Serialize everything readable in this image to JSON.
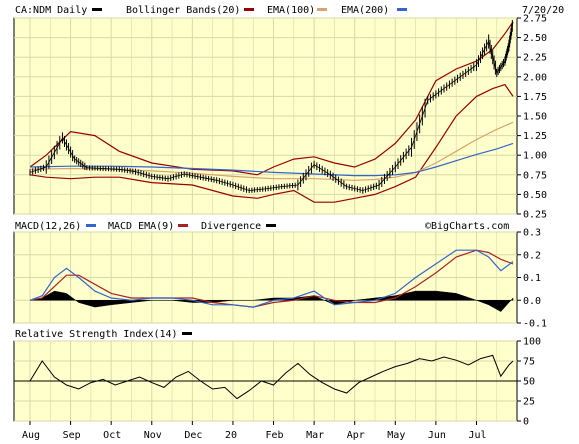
{
  "date_label": "7/20/20",
  "watermark": "©BigCharts.com",
  "colors": {
    "panel_bg": "#ffffcc",
    "grid": "#d8d8a8",
    "price": "#000000",
    "bollinger": "#990000",
    "ema100": "#d9a36b",
    "ema200": "#3366cc",
    "macd": "#3366cc",
    "macd_ema": "#aa2222",
    "divergence": "#000000",
    "rsi": "#000000"
  },
  "chart_data": [
    {
      "type": "line",
      "title": "",
      "legend": [
        {
          "label": "CA:NDM Daily",
          "color": "#000000"
        },
        {
          "label": "Bollinger Bands(20)",
          "color": "#990000"
        },
        {
          "label": "EMA(100)",
          "color": "#d9a36b"
        },
        {
          "label": "EMA(200)",
          "color": "#3366cc"
        }
      ],
      "x": [
        "Aug",
        "Sep",
        "Oct",
        "Nov",
        "Dec",
        "20",
        "Feb",
        "Mar",
        "Apr",
        "May",
        "Jun",
        "Jul"
      ],
      "yticks": [
        "2.75",
        "2.50",
        "2.25",
        "2.00",
        "1.75",
        "1.50",
        "1.25",
        "1.00",
        "0.75",
        "0.50",
        "0.25"
      ],
      "ylim": [
        0.25,
        2.75
      ],
      "series": [
        {
          "name": "CA:NDM Daily",
          "x": [
            0,
            0.4,
            0.8,
            1.1,
            1.4,
            1.8,
            2.2,
            2.6,
            3,
            3.4,
            3.8,
            4.2,
            4.6,
            5,
            5.4,
            5.8,
            6.2,
            6.6,
            7,
            7.4,
            7.8,
            8.2,
            8.6,
            9,
            9.4,
            9.8,
            10.2,
            10.6,
            11,
            11.3,
            11.5,
            11.7,
            11.8,
            11.9
          ],
          "values": [
            0.78,
            0.85,
            1.22,
            0.95,
            0.84,
            0.83,
            0.82,
            0.79,
            0.73,
            0.7,
            0.76,
            0.72,
            0.68,
            0.62,
            0.55,
            0.57,
            0.6,
            0.62,
            0.88,
            0.75,
            0.6,
            0.55,
            0.62,
            0.85,
            1.1,
            1.7,
            1.85,
            2.0,
            2.15,
            2.45,
            2.05,
            2.2,
            2.4,
            2.7
          ]
        },
        {
          "name": "Bollinger Upper",
          "x": [
            0,
            0.4,
            1,
            1.6,
            2.2,
            3,
            4,
            5,
            5.6,
            6,
            6.5,
            7,
            7.5,
            8,
            8.5,
            9,
            9.5,
            10,
            10.5,
            11,
            11.4,
            11.7,
            11.9
          ],
          "values": [
            0.85,
            1.0,
            1.3,
            1.25,
            1.05,
            0.9,
            0.82,
            0.8,
            0.75,
            0.85,
            0.95,
            0.98,
            0.9,
            0.85,
            0.95,
            1.15,
            1.45,
            1.95,
            2.1,
            2.2,
            2.35,
            2.55,
            2.7
          ]
        },
        {
          "name": "Bollinger Lower",
          "x": [
            0,
            0.4,
            1,
            1.6,
            2.2,
            3,
            4,
            5,
            5.6,
            6,
            6.5,
            7,
            7.5,
            8,
            8.5,
            9,
            9.5,
            10,
            10.5,
            11,
            11.4,
            11.7,
            11.9
          ],
          "values": [
            0.75,
            0.72,
            0.7,
            0.72,
            0.72,
            0.65,
            0.62,
            0.48,
            0.45,
            0.5,
            0.55,
            0.4,
            0.4,
            0.45,
            0.5,
            0.6,
            0.72,
            1.1,
            1.5,
            1.75,
            1.85,
            1.9,
            1.75
          ]
        },
        {
          "name": "EMA(100)",
          "x": [
            0,
            1,
            2,
            3,
            4,
            5,
            6,
            7,
            8,
            8.5,
            9,
            9.5,
            10,
            10.5,
            11,
            11.5,
            11.9
          ],
          "values": [
            0.82,
            0.83,
            0.82,
            0.8,
            0.77,
            0.73,
            0.7,
            0.7,
            0.68,
            0.69,
            0.72,
            0.78,
            0.9,
            1.05,
            1.2,
            1.33,
            1.42
          ]
        },
        {
          "name": "EMA(200)",
          "x": [
            0,
            1,
            2,
            3,
            4,
            5,
            6,
            7,
            8,
            8.5,
            9,
            9.5,
            10,
            10.5,
            11,
            11.5,
            11.9
          ],
          "values": [
            0.85,
            0.86,
            0.86,
            0.85,
            0.83,
            0.81,
            0.78,
            0.76,
            0.74,
            0.74,
            0.75,
            0.78,
            0.85,
            0.93,
            1.01,
            1.08,
            1.15
          ]
        }
      ]
    },
    {
      "type": "line",
      "title": "",
      "legend": [
        {
          "label": "MACD(12,26)",
          "color": ""
        },
        {
          "label": "MACD EMA(9)",
          "color": "#3366cc"
        },
        {
          "label": "Divergence",
          "color": "#aa2222"
        },
        {
          "label": "",
          "color": "#000000"
        }
      ],
      "yticks": [
        "0.3",
        "0.2",
        "0.1",
        "0.0",
        "-0.1"
      ],
      "ylim": [
        -0.1,
        0.3
      ],
      "series": [
        {
          "name": "MACD",
          "x": [
            0,
            0.3,
            0.6,
            0.9,
            1.2,
            1.6,
            2,
            2.5,
            3,
            3.5,
            4,
            4.5,
            5,
            5.5,
            6,
            6.5,
            7,
            7.5,
            8,
            8.5,
            9,
            9.5,
            10,
            10.5,
            11,
            11.3,
            11.6,
            11.9
          ],
          "values": [
            0.0,
            0.02,
            0.1,
            0.14,
            0.1,
            0.04,
            0.01,
            0.0,
            0.01,
            0.01,
            0.0,
            -0.02,
            -0.02,
            -0.03,
            0.0,
            0.01,
            0.04,
            -0.02,
            -0.01,
            0.0,
            0.03,
            0.1,
            0.16,
            0.22,
            0.22,
            0.19,
            0.13,
            0.17
          ]
        },
        {
          "name": "MACD EMA(9)",
          "x": [
            0,
            0.3,
            0.6,
            0.9,
            1.2,
            1.6,
            2,
            2.5,
            3,
            3.5,
            4,
            4.5,
            5,
            5.5,
            6,
            6.5,
            7,
            7.5,
            8,
            8.5,
            9,
            9.5,
            10,
            10.5,
            11,
            11.3,
            11.6,
            11.9
          ],
          "values": [
            0.0,
            0.01,
            0.06,
            0.11,
            0.11,
            0.07,
            0.03,
            0.01,
            0.01,
            0.01,
            0.01,
            -0.01,
            -0.02,
            -0.03,
            -0.01,
            0.0,
            0.02,
            0.0,
            -0.01,
            -0.01,
            0.01,
            0.06,
            0.12,
            0.19,
            0.22,
            0.21,
            0.18,
            0.16
          ]
        },
        {
          "name": "Divergence",
          "x": [
            0,
            0.3,
            0.6,
            0.9,
            1.2,
            1.6,
            2,
            2.5,
            3,
            3.5,
            4,
            4.5,
            5,
            5.5,
            6,
            6.5,
            7,
            7.5,
            8,
            8.5,
            9,
            9.5,
            10,
            10.5,
            11,
            11.3,
            11.6,
            11.9
          ],
          "values": [
            0.0,
            0.01,
            0.04,
            0.03,
            -0.01,
            -0.03,
            -0.02,
            -0.01,
            0.0,
            0.0,
            -0.01,
            -0.01,
            0.0,
            0.0,
            0.01,
            0.01,
            0.02,
            -0.02,
            0.0,
            0.01,
            0.02,
            0.04,
            0.04,
            0.03,
            0.0,
            -0.02,
            -0.05,
            0.01
          ]
        }
      ]
    },
    {
      "type": "line",
      "title": "",
      "legend": [
        {
          "label": "Relative Strength Index(14)",
          "color": "#000000"
        }
      ],
      "yticks": [
        "100",
        "75",
        "50",
        "25",
        "0"
      ],
      "ylim": [
        0,
        100
      ],
      "series": [
        {
          "name": "RSI(14)",
          "x": [
            0,
            0.3,
            0.6,
            0.9,
            1.2,
            1.5,
            1.8,
            2.1,
            2.4,
            2.7,
            3,
            3.3,
            3.6,
            3.9,
            4.2,
            4.5,
            4.8,
            5.1,
            5.4,
            5.7,
            6,
            6.3,
            6.6,
            6.9,
            7.2,
            7.5,
            7.8,
            8.1,
            8.4,
            8.7,
            9,
            9.3,
            9.6,
            9.9,
            10.2,
            10.5,
            10.8,
            11.1,
            11.4,
            11.6,
            11.8,
            11.9
          ],
          "values": [
            50,
            75,
            55,
            45,
            40,
            48,
            52,
            45,
            50,
            55,
            48,
            42,
            55,
            62,
            50,
            40,
            42,
            28,
            38,
            50,
            45,
            60,
            72,
            58,
            48,
            40,
            35,
            48,
            55,
            62,
            68,
            72,
            78,
            75,
            80,
            76,
            70,
            78,
            82,
            56,
            70,
            75
          ]
        }
      ]
    }
  ]
}
